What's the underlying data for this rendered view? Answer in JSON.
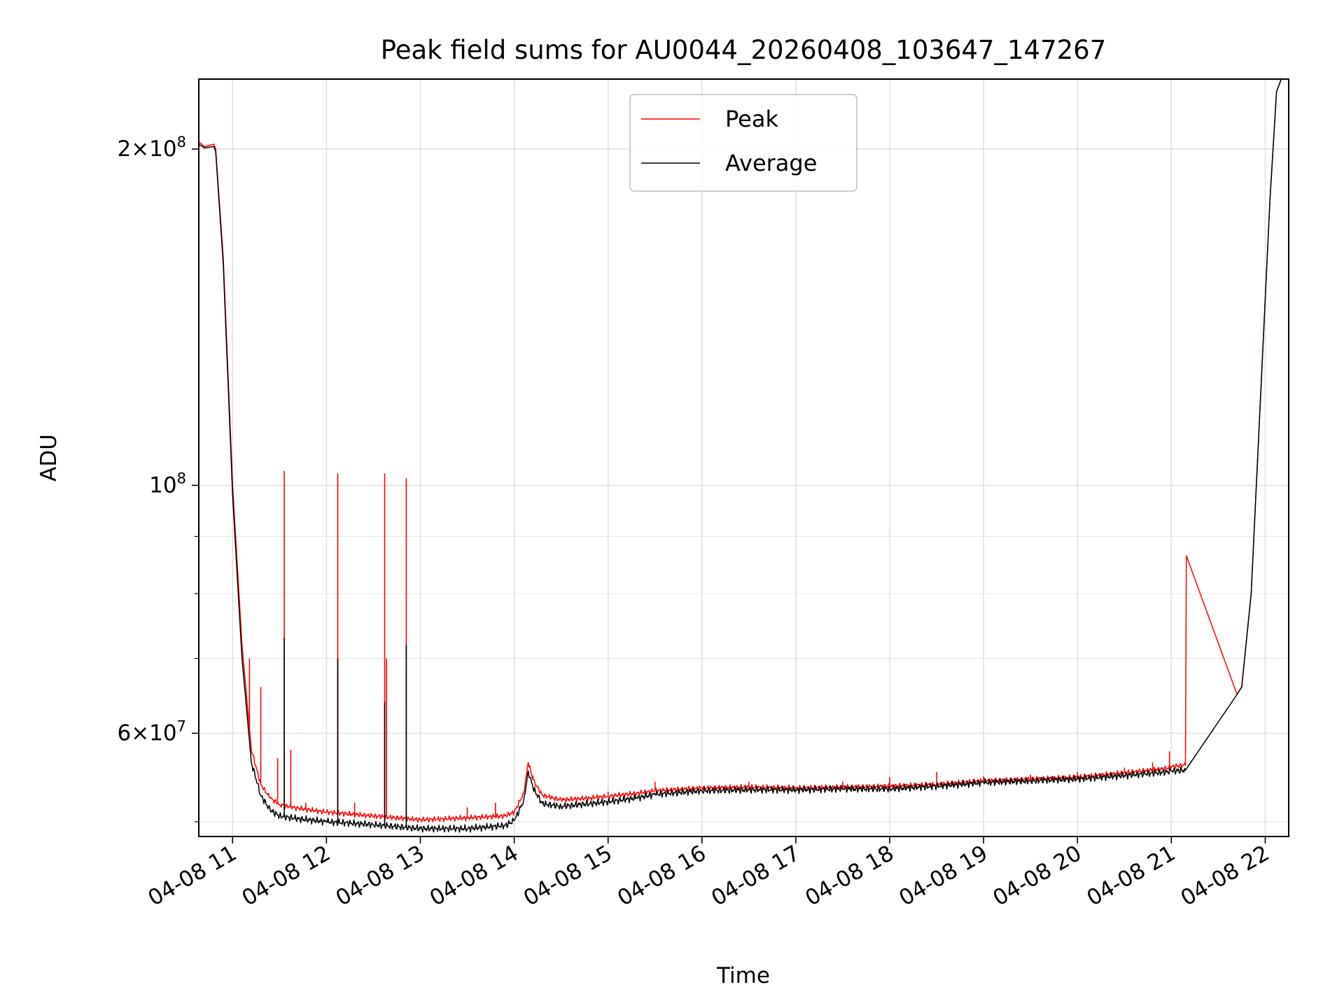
{
  "chart_data": {
    "type": "line",
    "title": "Peak field sums for AU0044_20260408_103647_147267",
    "xlabel": "Time",
    "ylabel": "ADU",
    "yscale": "log",
    "xlim": [
      10.64,
      22.25
    ],
    "ylim": [
      48500000,
      231000000
    ],
    "grid": true,
    "legend_position": "upper center",
    "x_ticks": [
      {
        "value": 11,
        "label": "04-08 11"
      },
      {
        "value": 12,
        "label": "04-08 12"
      },
      {
        "value": 13,
        "label": "04-08 13"
      },
      {
        "value": 14,
        "label": "04-08 14"
      },
      {
        "value": 15,
        "label": "04-08 15"
      },
      {
        "value": 16,
        "label": "04-08 16"
      },
      {
        "value": 17,
        "label": "04-08 17"
      },
      {
        "value": 18,
        "label": "04-08 18"
      },
      {
        "value": 19,
        "label": "04-08 19"
      },
      {
        "value": 20,
        "label": "04-08 20"
      },
      {
        "value": 21,
        "label": "04-08 21"
      },
      {
        "value": 22,
        "label": "04-08 22"
      }
    ],
    "y_major_ticks": [
      {
        "value": 60000000,
        "mantissa": "6",
        "exponent": "7"
      },
      {
        "value": 100000000,
        "mantissa": "",
        "exponent": "8"
      },
      {
        "value": 200000000,
        "mantissa": "2",
        "exponent": "8"
      }
    ],
    "y_tick_base": "10",
    "y_tick_times": "×",
    "y_minor_ticks": [
      50000000,
      70000000,
      80000000,
      90000000
    ],
    "series": [
      {
        "name": "Peak",
        "color": "#ff0000",
        "points": [
          [
            10.64,
            203000000
          ],
          [
            10.7,
            201000000
          ],
          [
            10.8,
            202000000
          ],
          [
            10.82,
            200000000
          ],
          [
            10.9,
            160000000
          ],
          [
            11.0,
            100000000
          ],
          [
            11.1,
            72000000
          ],
          [
            11.2,
            58000000
          ],
          [
            11.3,
            54000000
          ],
          [
            11.4,
            52500000
          ],
          [
            11.5,
            51800000
          ],
          [
            11.7,
            51400000
          ],
          [
            12.0,
            51000000
          ],
          [
            12.5,
            50600000
          ],
          [
            13.0,
            50200000
          ],
          [
            13.5,
            50400000
          ],
          [
            13.9,
            50600000
          ],
          [
            14.0,
            51000000
          ],
          [
            14.1,
            53000000
          ],
          [
            14.15,
            56500000
          ],
          [
            14.2,
            54500000
          ],
          [
            14.3,
            52800000
          ],
          [
            14.5,
            52300000
          ],
          [
            14.8,
            52500000
          ],
          [
            15.0,
            52700000
          ],
          [
            15.3,
            53000000
          ],
          [
            15.5,
            53300000
          ],
          [
            16.0,
            53600000
          ],
          [
            16.5,
            53700000
          ],
          [
            17.0,
            53600000
          ],
          [
            17.5,
            53700000
          ],
          [
            18.0,
            53800000
          ],
          [
            18.5,
            54000000
          ],
          [
            19.0,
            54400000
          ],
          [
            19.5,
            54600000
          ],
          [
            20.0,
            54800000
          ],
          [
            20.5,
            55300000
          ],
          [
            20.95,
            55800000
          ],
          [
            21.0,
            56000000
          ],
          [
            21.15,
            56200000
          ],
          [
            21.16,
            86500000
          ],
          [
            21.7,
            65000000
          ],
          [
            21.75,
            66000000
          ],
          [
            21.85,
            80000000
          ],
          [
            21.95,
            120000000
          ],
          [
            22.05,
            180000000
          ],
          [
            22.12,
            225000000
          ],
          [
            22.17,
            231000000
          ]
        ],
        "spikes": [
          [
            11.18,
            70000000
          ],
          [
            11.3,
            66000000
          ],
          [
            11.48,
            57000000
          ],
          [
            11.55,
            103000000
          ],
          [
            11.62,
            58000000
          ],
          [
            11.78,
            52000000
          ],
          [
            12.12,
            102500000
          ],
          [
            12.3,
            52000000
          ],
          [
            12.62,
            102500000
          ],
          [
            12.64,
            70000000
          ],
          [
            12.85,
            101500000
          ],
          [
            13.5,
            51500000
          ],
          [
            13.8,
            52000000
          ],
          [
            14.2,
            55000000
          ],
          [
            15.0,
            53200000
          ],
          [
            15.5,
            54300000
          ],
          [
            16.5,
            54300000
          ],
          [
            17.5,
            54300000
          ],
          [
            18.0,
            54800000
          ],
          [
            18.5,
            55400000
          ],
          [
            19.0,
            54900000
          ],
          [
            19.5,
            55100000
          ],
          [
            20.0,
            55400000
          ],
          [
            20.5,
            55900000
          ],
          [
            20.8,
            56500000
          ],
          [
            20.98,
            57800000
          ]
        ]
      },
      {
        "name": "Average",
        "color": "#000000",
        "points": [
          [
            10.64,
            202000000
          ],
          [
            10.7,
            200500000
          ],
          [
            10.8,
            201000000
          ],
          [
            10.82,
            199000000
          ],
          [
            10.9,
            158000000
          ],
          [
            11.0,
            98000000
          ],
          [
            11.1,
            70000000
          ],
          [
            11.2,
            56500000
          ],
          [
            11.3,
            52800000
          ],
          [
            11.4,
            51200000
          ],
          [
            11.5,
            50600000
          ],
          [
            11.7,
            50300000
          ],
          [
            12.0,
            50000000
          ],
          [
            12.5,
            49700000
          ],
          [
            13.0,
            49300000
          ],
          [
            13.5,
            49300000
          ],
          [
            13.9,
            49600000
          ],
          [
            14.0,
            50100000
          ],
          [
            14.1,
            52200000
          ],
          [
            14.15,
            55500000
          ],
          [
            14.2,
            53600000
          ],
          [
            14.3,
            51900000
          ],
          [
            14.5,
            51600000
          ],
          [
            14.8,
            51900000
          ],
          [
            15.0,
            52100000
          ],
          [
            15.3,
            52500000
          ],
          [
            15.5,
            52900000
          ],
          [
            16.0,
            53300000
          ],
          [
            16.5,
            53400000
          ],
          [
            17.0,
            53400000
          ],
          [
            17.5,
            53500000
          ],
          [
            18.0,
            53500000
          ],
          [
            18.5,
            53800000
          ],
          [
            19.0,
            54200000
          ],
          [
            19.5,
            54400000
          ],
          [
            20.0,
            54600000
          ],
          [
            20.5,
            55000000
          ],
          [
            20.95,
            55400000
          ],
          [
            21.0,
            55500000
          ],
          [
            21.15,
            55600000
          ],
          [
            21.7,
            65000000
          ],
          [
            21.75,
            66000000
          ],
          [
            21.85,
            80000000
          ],
          [
            21.95,
            120000000
          ],
          [
            22.05,
            180000000
          ],
          [
            22.12,
            225000000
          ],
          [
            22.17,
            231000000
          ]
        ],
        "spikes": [
          [
            11.55,
            73000000
          ],
          [
            12.12,
            70000000
          ],
          [
            12.62,
            64000000
          ],
          [
            12.85,
            72000000
          ]
        ]
      }
    ]
  }
}
